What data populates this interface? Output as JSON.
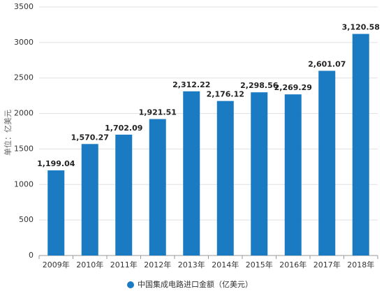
{
  "chart_data": {
    "type": "bar",
    "y_label": "单位：亿美元",
    "categories": [
      "2009年",
      "2010年",
      "2011年",
      "2012年",
      "2013年",
      "2014年",
      "2015年",
      "2016年",
      "2017年",
      "2018年"
    ],
    "series": [
      {
        "name": "中国集成电路进口金额（亿美元）",
        "color": "#1a7bc3",
        "values": [
          1199.04,
          1570.27,
          1702.09,
          1921.51,
          2312.22,
          2176.12,
          2298.56,
          2269.29,
          2601.07,
          3120.58
        ],
        "value_labels": [
          "1,199.04",
          "1,570.27",
          "1,702.09",
          "1,921.51",
          "2,312.22",
          "2,176.12",
          "2,298.56",
          "2,269.29",
          "2,601.07",
          "3,120.58"
        ]
      }
    ],
    "ylim": [
      0,
      3500
    ],
    "yticks": [
      0,
      500,
      1000,
      1500,
      2000,
      2500,
      3000,
      3500
    ],
    "grid": true,
    "legend": "bottom"
  }
}
